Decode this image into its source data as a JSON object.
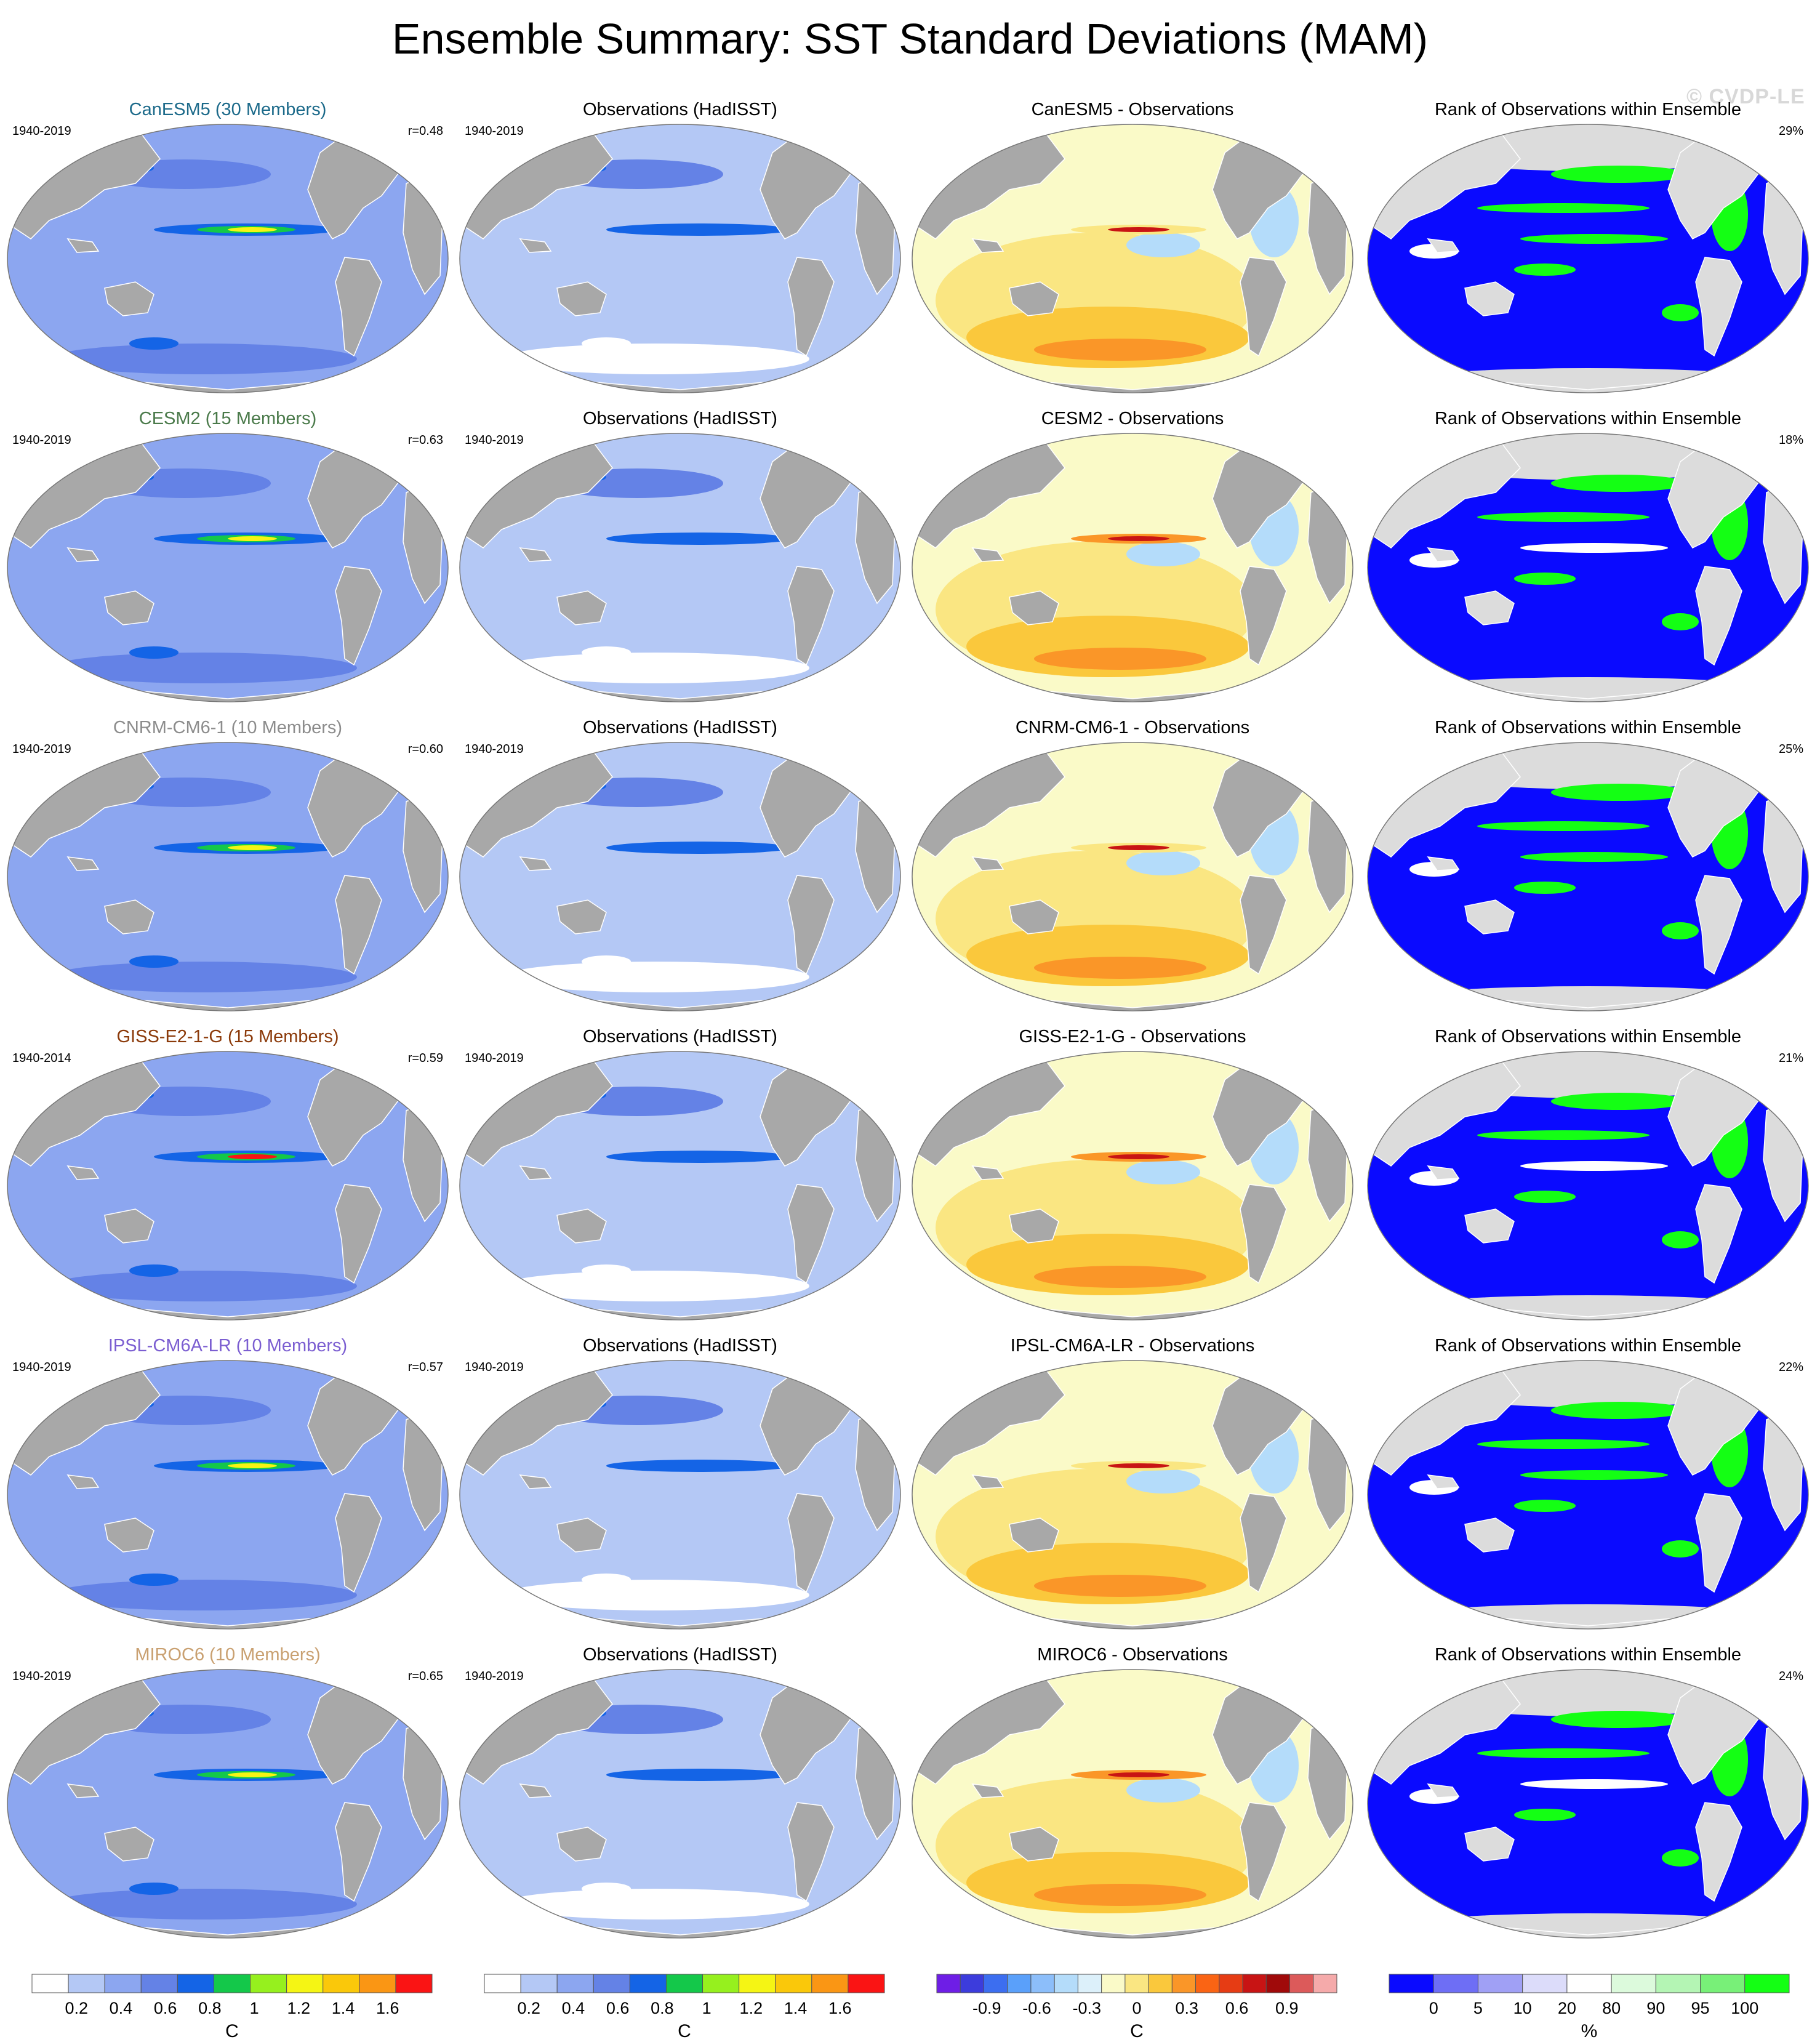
{
  "title": "Ensemble Summary: SST Standard Deviations (MAM)",
  "watermark": "© CVDP-LE",
  "obs_title": "Observations (HadISST)",
  "rank_title": "Rank of Observations within Ensemble",
  "obs_years": "1940-2019",
  "rows": [
    {
      "model_title": "CanESM5 (30 Members)",
      "model_color": "#1c6a8a",
      "model_years": "1940-2019",
      "r": "r=0.48",
      "diff_title": "CanESM5 - Observations",
      "rank_pct": "29%"
    },
    {
      "model_title": "CESM2 (15 Members)",
      "model_color": "#4a7a4a",
      "model_years": "1940-2019",
      "r": "r=0.63",
      "diff_title": "CESM2 - Observations",
      "rank_pct": "18%"
    },
    {
      "model_title": "CNRM-CM6-1 (10 Members)",
      "model_color": "#8c8c8c",
      "model_years": "1940-2019",
      "r": "r=0.60",
      "diff_title": "CNRM-CM6-1 - Observations",
      "rank_pct": "25%"
    },
    {
      "model_title": "GISS-E2-1-G (15 Members)",
      "model_color": "#8b3a0a",
      "model_years": "1940-2014",
      "r": "r=0.59",
      "diff_title": "GISS-E2-1-G - Observations",
      "rank_pct": "21%"
    },
    {
      "model_title": "IPSL-CM6A-LR (10 Members)",
      "model_color": "#7b5ed1",
      "model_years": "1940-2019",
      "r": "r=0.57",
      "diff_title": "IPSL-CM6A-LR - Observations",
      "rank_pct": "22%"
    },
    {
      "model_title": "MIROC6 (10 Members)",
      "model_color": "#c9a070",
      "model_years": "1940-2019",
      "r": "r=0.65",
      "diff_title": "MIROC6 - Observations",
      "rank_pct": "24%"
    }
  ],
  "colorbars": {
    "sd": {
      "colors": [
        "#ffffff",
        "#b4c8f5",
        "#8ca6f0",
        "#6482e6",
        "#1464e6",
        "#14c84a",
        "#96f01e",
        "#f5f514",
        "#fac80a",
        "#fa9614",
        "#fa1414"
      ],
      "labels": [
        "0.2",
        "0.4",
        "0.6",
        "0.8",
        "1",
        "1.2",
        "1.4",
        "1.6"
      ],
      "units": "C"
    },
    "diff": {
      "colors": [
        "#6e1ee6",
        "#3c3cdc",
        "#3c6ef0",
        "#5aa0fa",
        "#8cbefa",
        "#b4dcfa",
        "#dcf0fa",
        "#fafac8",
        "#fae682",
        "#fac83c",
        "#fa9628",
        "#fa6414",
        "#e63c14",
        "#c81414",
        "#a00a0a",
        "#dc5a5a",
        "#f5aaaa"
      ],
      "labels": [
        "-0.9",
        "-0.6",
        "-0.3",
        "0",
        "0.3",
        "0.6",
        "0.9"
      ],
      "units": "C"
    },
    "rank": {
      "colors": [
        "#0a0aff",
        "#6e6ef5",
        "#a0a0f5",
        "#dcdcfa",
        "#ffffff",
        "#dcfadc",
        "#b4f5b4",
        "#78f078",
        "#14ff14"
      ],
      "labels": [
        "0",
        "5",
        "10",
        "20",
        "80",
        "90",
        "95",
        "100"
      ],
      "units": "%"
    }
  }
}
